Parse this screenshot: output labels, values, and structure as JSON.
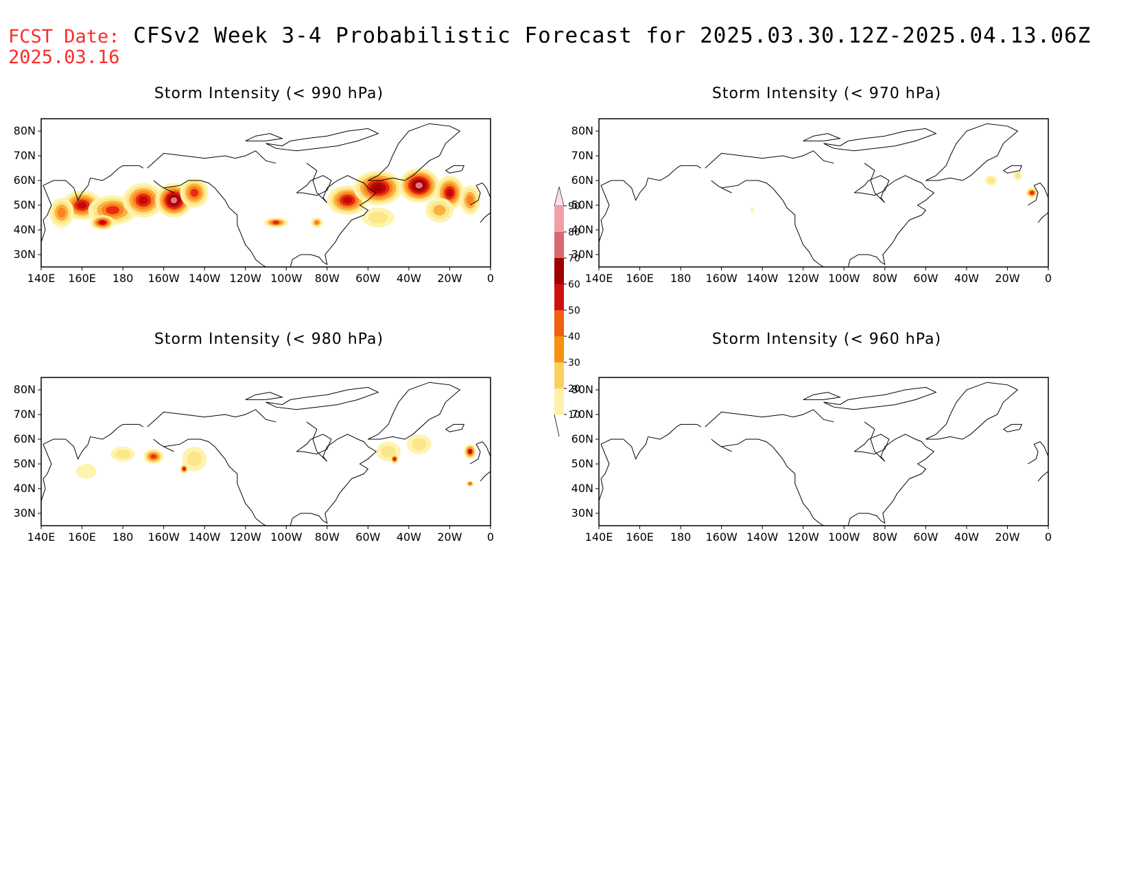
{
  "header": {
    "fcst_label": "FCST Date:",
    "fcst_date": "2025.03.16",
    "title": "CFSv2 Week 3-4 Probabilistic Forecast for 2025.03.30.12Z-2025.04.13.06Z"
  },
  "axes": {
    "lat_labels": [
      "80N",
      "70N",
      "60N",
      "50N",
      "40N",
      "30N"
    ],
    "lat_values": [
      80,
      70,
      60,
      50,
      40,
      30
    ],
    "lon_labels": [
      "140E",
      "160E",
      "180",
      "160W",
      "140W",
      "120W",
      "100W",
      "80W",
      "60W",
      "40W",
      "20W",
      "0"
    ],
    "lon_range": [
      140,
      360
    ],
    "lat_range": [
      25,
      85
    ]
  },
  "panels": [
    {
      "id": "p990",
      "title": "Storm Intensity (< 990 hPa)",
      "blobs": [
        {
          "lon": 160,
          "lat": 50,
          "rx": 10,
          "ry": 6,
          "v": 60
        },
        {
          "lon": 175,
          "lat": 48,
          "rx": 12,
          "ry": 6,
          "v": 50
        },
        {
          "lon": 190,
          "lat": 52,
          "rx": 10,
          "ry": 7,
          "v": 60
        },
        {
          "lon": 205,
          "lat": 52,
          "rx": 9,
          "ry": 7,
          "v": 80
        },
        {
          "lon": 215,
          "lat": 55,
          "rx": 7,
          "ry": 6,
          "v": 50
        },
        {
          "lon": 150,
          "lat": 47,
          "rx": 6,
          "ry": 6,
          "v": 40
        },
        {
          "lon": 170,
          "lat": 43,
          "rx": 6,
          "ry": 3,
          "v": 60
        },
        {
          "lon": 255,
          "lat": 43,
          "rx": 6,
          "ry": 2,
          "v": 50
        },
        {
          "lon": 275,
          "lat": 43,
          "rx": 3,
          "ry": 2,
          "v": 40
        },
        {
          "lon": 290,
          "lat": 52,
          "rx": 10,
          "ry": 6,
          "v": 60
        },
        {
          "lon": 305,
          "lat": 57,
          "rx": 12,
          "ry": 7,
          "v": 70
        },
        {
          "lon": 325,
          "lat": 58,
          "rx": 10,
          "ry": 7,
          "v": 80
        },
        {
          "lon": 340,
          "lat": 55,
          "rx": 7,
          "ry": 7,
          "v": 60
        },
        {
          "lon": 305,
          "lat": 45,
          "rx": 8,
          "ry": 4,
          "v": 20
        },
        {
          "lon": 335,
          "lat": 48,
          "rx": 7,
          "ry": 5,
          "v": 30
        },
        {
          "lon": 350,
          "lat": 52,
          "rx": 5,
          "ry": 6,
          "v": 40
        }
      ]
    },
    {
      "id": "p970",
      "title": "Storm Intensity (< 970 hPa)",
      "blobs": [
        {
          "lon": 332,
          "lat": 60,
          "rx": 3,
          "ry": 2,
          "v": 20
        },
        {
          "lon": 345,
          "lat": 62,
          "rx": 2,
          "ry": 2,
          "v": 20
        },
        {
          "lon": 352,
          "lat": 55,
          "rx": 3,
          "ry": 2,
          "v": 50
        },
        {
          "lon": 215,
          "lat": 48,
          "rx": 1,
          "ry": 1,
          "v": 10
        }
      ]
    },
    {
      "id": "p980",
      "title": "Storm Intensity (< 980 hPa)",
      "blobs": [
        {
          "lon": 162,
          "lat": 47,
          "rx": 5,
          "ry": 3,
          "v": 10
        },
        {
          "lon": 180,
          "lat": 54,
          "rx": 6,
          "ry": 3,
          "v": 20
        },
        {
          "lon": 195,
          "lat": 53,
          "rx": 5,
          "ry": 3,
          "v": 50
        },
        {
          "lon": 215,
          "lat": 52,
          "rx": 6,
          "ry": 5,
          "v": 20
        },
        {
          "lon": 210,
          "lat": 48,
          "rx": 2,
          "ry": 2,
          "v": 50
        },
        {
          "lon": 310,
          "lat": 55,
          "rx": 6,
          "ry": 4,
          "v": 20
        },
        {
          "lon": 325,
          "lat": 58,
          "rx": 6,
          "ry": 4,
          "v": 20
        },
        {
          "lon": 313,
          "lat": 52,
          "rx": 2,
          "ry": 2,
          "v": 50
        },
        {
          "lon": 350,
          "lat": 55,
          "rx": 3,
          "ry": 3,
          "v": 60
        },
        {
          "lon": 350,
          "lat": 42,
          "rx": 2,
          "ry": 1,
          "v": 40
        }
      ]
    },
    {
      "id": "p960",
      "title": "Storm Intensity (< 960 hPa)",
      "blobs": []
    }
  ],
  "colorbar": {
    "labels": [
      "90",
      "80",
      "70",
      "60",
      "50",
      "40",
      "30",
      "20",
      "10"
    ],
    "colors": [
      "#f0a0a8",
      "#d86870",
      "#a00000",
      "#d01010",
      "#f06010",
      "#f89010",
      "#fcd060",
      "#fef0a8"
    ],
    "top_color": "#fce0e4"
  },
  "colors": {
    "10": "#fef4b0",
    "20": "#fde68a",
    "30": "#fbb040",
    "40": "#f88420",
    "50": "#e82a10",
    "60": "#c00a0a",
    "70": "#a00000",
    "80": "#e07880",
    "90": "#f4b4bc"
  }
}
